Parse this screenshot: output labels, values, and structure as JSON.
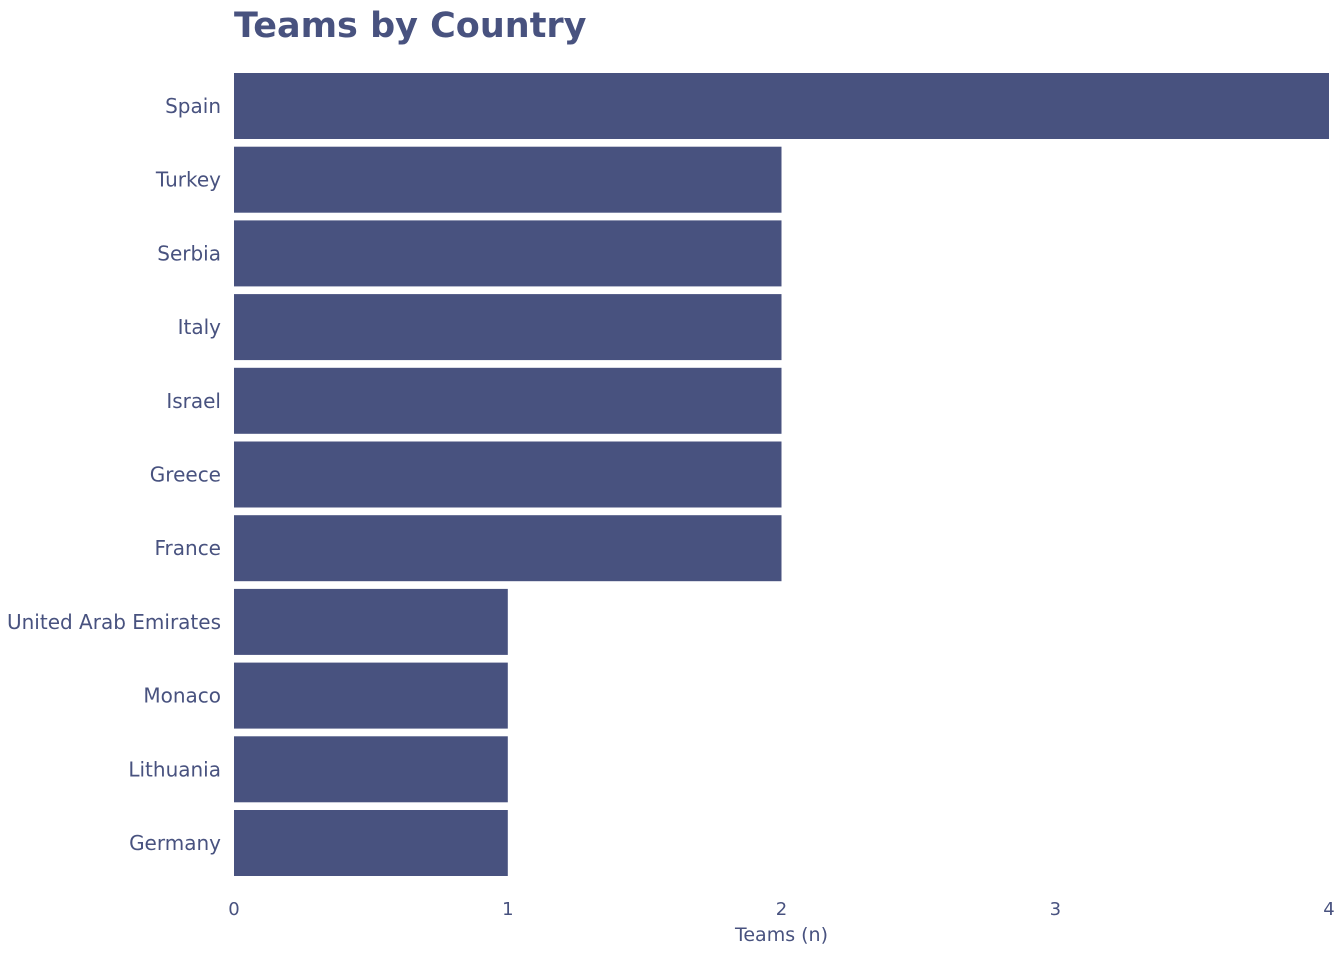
{
  "chart_data": {
    "type": "bar",
    "orientation": "horizontal",
    "title": "Teams by Country",
    "xlabel": "Teams (n)",
    "ylabel": "",
    "categories": [
      "Spain",
      "Turkey",
      "Serbia",
      "Italy",
      "Israel",
      "Greece",
      "France",
      "United Arab Emirates",
      "Monaco",
      "Lithuania",
      "Germany"
    ],
    "values": [
      4,
      2,
      2,
      2,
      2,
      2,
      2,
      1,
      1,
      1,
      1
    ],
    "xlim": [
      0,
      4
    ],
    "xticks": [
      "0",
      "1",
      "2",
      "3",
      "4"
    ],
    "grid": false,
    "legend": "none",
    "bar_color": "#48527f"
  }
}
